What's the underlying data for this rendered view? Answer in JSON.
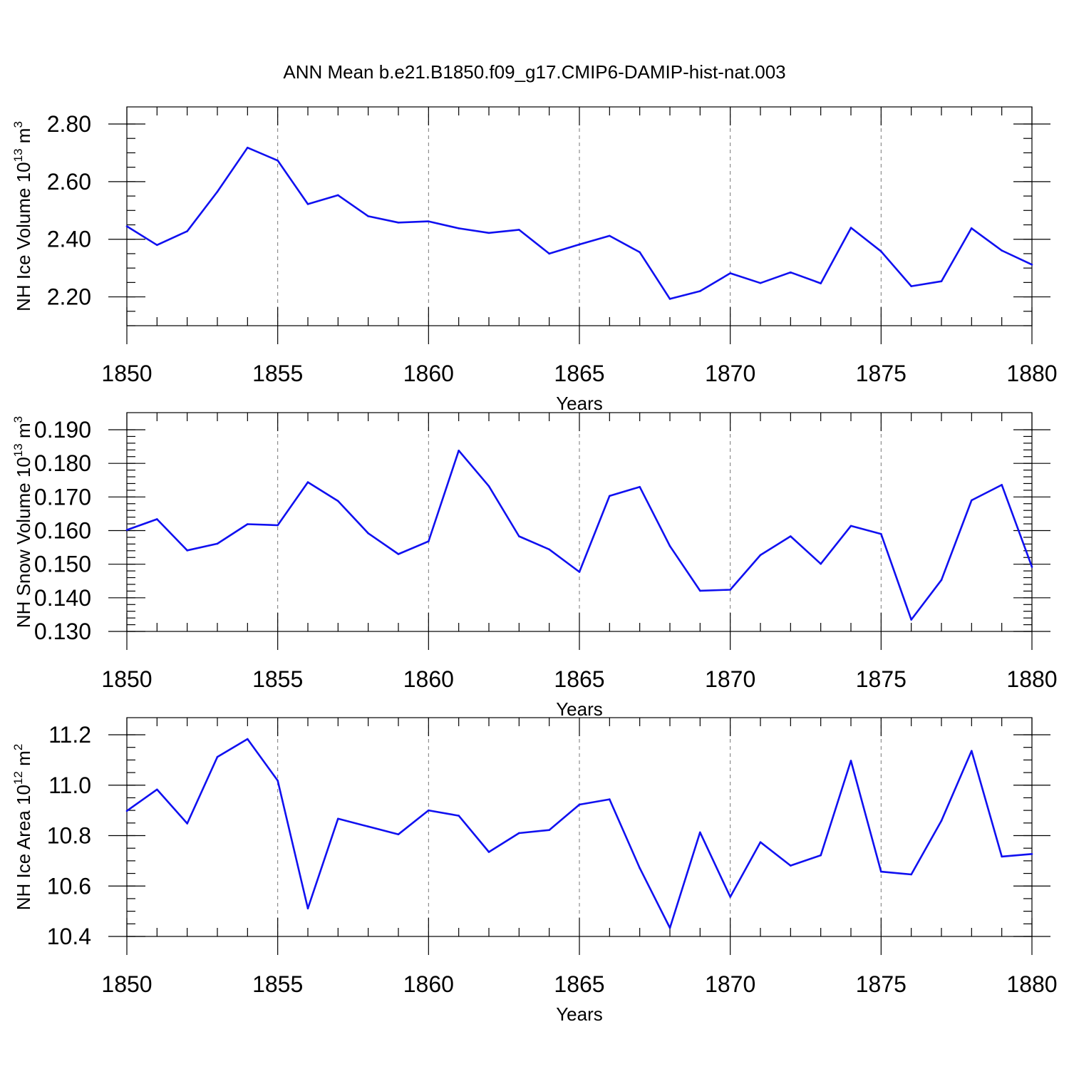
{
  "figure": {
    "title": "ANN Mean b.e21.B1850.f09_g17.CMIP6-DAMIP-hist-nat.003"
  },
  "colors": {
    "series": "#1010f0",
    "axes": "#000000",
    "grid": "#777777"
  },
  "chart_data": [
    {
      "type": "line",
      "title": "ANN Mean b.e21.B1850.f09_g17.CMIP6-DAMIP-hist-nat.003",
      "xlabel": "Years",
      "ylabel_main": "NH Ice Volume 10",
      "ylabel_exp": "13",
      "ylabel_unit": " m",
      "ylabel_unit_exp": "3",
      "xlim": [
        1850,
        1880
      ],
      "ylim": [
        2.1,
        2.8
      ],
      "x_ticks": [
        "1850",
        "1855",
        "1860",
        "1865",
        "1870",
        "1875",
        "1880"
      ],
      "y_ticks": [
        "2.20",
        "2.40",
        "2.60",
        "2.80"
      ],
      "grid": "dashed vertical at major x ticks",
      "x": [
        1850,
        1851,
        1852,
        1853,
        1854,
        1855,
        1856,
        1857,
        1858,
        1859,
        1860,
        1861,
        1862,
        1863,
        1864,
        1865,
        1866,
        1867,
        1868,
        1869,
        1870,
        1871,
        1872,
        1873,
        1874,
        1875,
        1876,
        1877,
        1878,
        1879,
        1880
      ],
      "values": [
        2.445,
        2.38,
        2.428,
        2.565,
        2.718,
        2.673,
        2.522,
        2.553,
        2.48,
        2.458,
        2.462,
        2.438,
        2.422,
        2.433,
        2.35,
        2.382,
        2.412,
        2.355,
        2.193,
        2.22,
        2.282,
        2.248,
        2.285,
        2.247,
        2.44,
        2.358,
        2.237,
        2.254,
        2.438,
        2.361,
        2.312
      ]
    },
    {
      "type": "line",
      "xlabel": "Years",
      "ylabel_main": "NH Snow Volume 10",
      "ylabel_exp": "13",
      "ylabel_unit": " m",
      "ylabel_unit_exp": "3",
      "xlim": [
        1850,
        1880
      ],
      "ylim": [
        0.13,
        0.19
      ],
      "x_ticks": [
        "1850",
        "1855",
        "1860",
        "1865",
        "1870",
        "1875",
        "1880"
      ],
      "y_ticks": [
        "0.130",
        "0.140",
        "0.150",
        "0.160",
        "0.170",
        "0.180",
        "0.190"
      ],
      "grid": "dashed vertical at major x ticks",
      "x": [
        1850,
        1851,
        1852,
        1853,
        1854,
        1855,
        1856,
        1857,
        1858,
        1859,
        1860,
        1861,
        1862,
        1863,
        1864,
        1865,
        1866,
        1867,
        1868,
        1869,
        1870,
        1871,
        1872,
        1873,
        1874,
        1875,
        1876,
        1877,
        1878,
        1879,
        1880
      ],
      "values": [
        0.1602,
        0.1634,
        0.1541,
        0.1561,
        0.1619,
        0.1616,
        0.1744,
        0.1688,
        0.1592,
        0.153,
        0.1568,
        0.1838,
        0.1732,
        0.1583,
        0.1544,
        0.1477,
        0.1703,
        0.173,
        0.1554,
        0.1421,
        0.1424,
        0.1527,
        0.1583,
        0.1501,
        0.1614,
        0.159,
        0.1335,
        0.1453,
        0.169,
        0.1736,
        0.1492
      ]
    },
    {
      "type": "line",
      "xlabel": "Years",
      "ylabel_main": "NH Ice Area 10",
      "ylabel_exp": "12",
      "ylabel_unit": " m",
      "ylabel_unit_exp": "2",
      "xlim": [
        1850,
        1880
      ],
      "ylim": [
        10.4,
        11.2
      ],
      "x_ticks": [
        "1850",
        "1855",
        "1860",
        "1865",
        "1870",
        "1875",
        "1880"
      ],
      "y_ticks": [
        "10.4",
        "10.6",
        "10.8",
        "11.0",
        "11.2"
      ],
      "grid": "dashed vertical at major x ticks",
      "x": [
        1850,
        1851,
        1852,
        1853,
        1854,
        1855,
        1856,
        1857,
        1858,
        1859,
        1860,
        1861,
        1862,
        1863,
        1864,
        1865,
        1866,
        1867,
        1868,
        1869,
        1870,
        1871,
        1872,
        1873,
        1874,
        1875,
        1876,
        1877,
        1878,
        1879,
        1880
      ],
      "values": [
        10.898,
        10.983,
        10.848,
        11.112,
        11.183,
        11.018,
        10.511,
        10.867,
        10.836,
        10.805,
        10.9,
        10.879,
        10.735,
        10.81,
        10.822,
        10.923,
        10.944,
        10.671,
        10.434,
        10.813,
        10.557,
        10.774,
        10.681,
        10.722,
        11.097,
        10.657,
        10.646,
        10.859,
        11.136,
        10.717,
        10.727
      ]
    }
  ]
}
